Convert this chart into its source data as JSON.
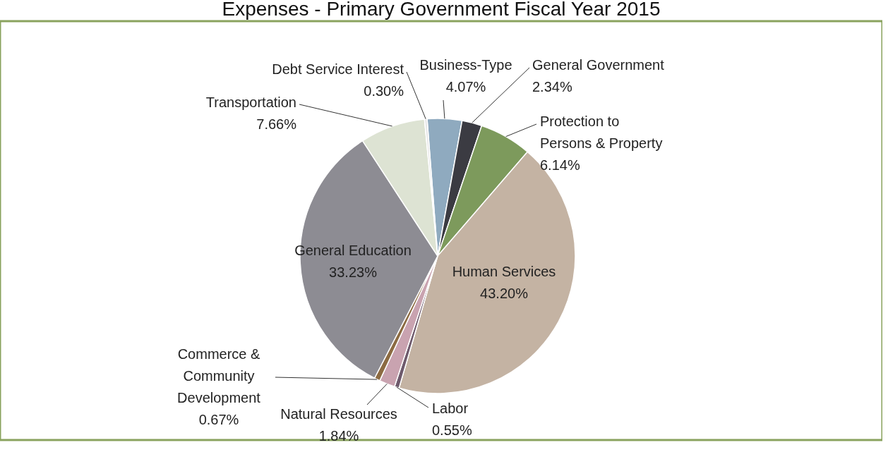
{
  "chart_data": {
    "type": "pie",
    "title": "Expenses - Primary Government Fiscal Year 2015",
    "categories": [
      "Business-Type",
      "General Government",
      "Protection to Persons & Property",
      "Human Services",
      "Labor",
      "Natural Resources",
      "Commerce & Community Development",
      "General Education",
      "Transportation",
      "Debt Service Interest"
    ],
    "values": [
      4.07,
      2.34,
      6.14,
      43.2,
      0.55,
      1.84,
      0.67,
      33.23,
      7.66,
      0.3
    ],
    "colors": [
      "#8faabf",
      "#3b3b42",
      "#7d9a5c",
      "#c4b3a3",
      "#6e5a6c",
      "#c9a3b0",
      "#8c6b42",
      "#8d8c93",
      "#dde3d3",
      "#e6e6e6"
    ],
    "value_labels": [
      "4.07%",
      "2.34%",
      "6.14%",
      "43.20%",
      "0.55%",
      "1.84%",
      "0.67%",
      "33.23%",
      "7.66%",
      "0.30%"
    ],
    "data_labels": true,
    "legend": false
  }
}
